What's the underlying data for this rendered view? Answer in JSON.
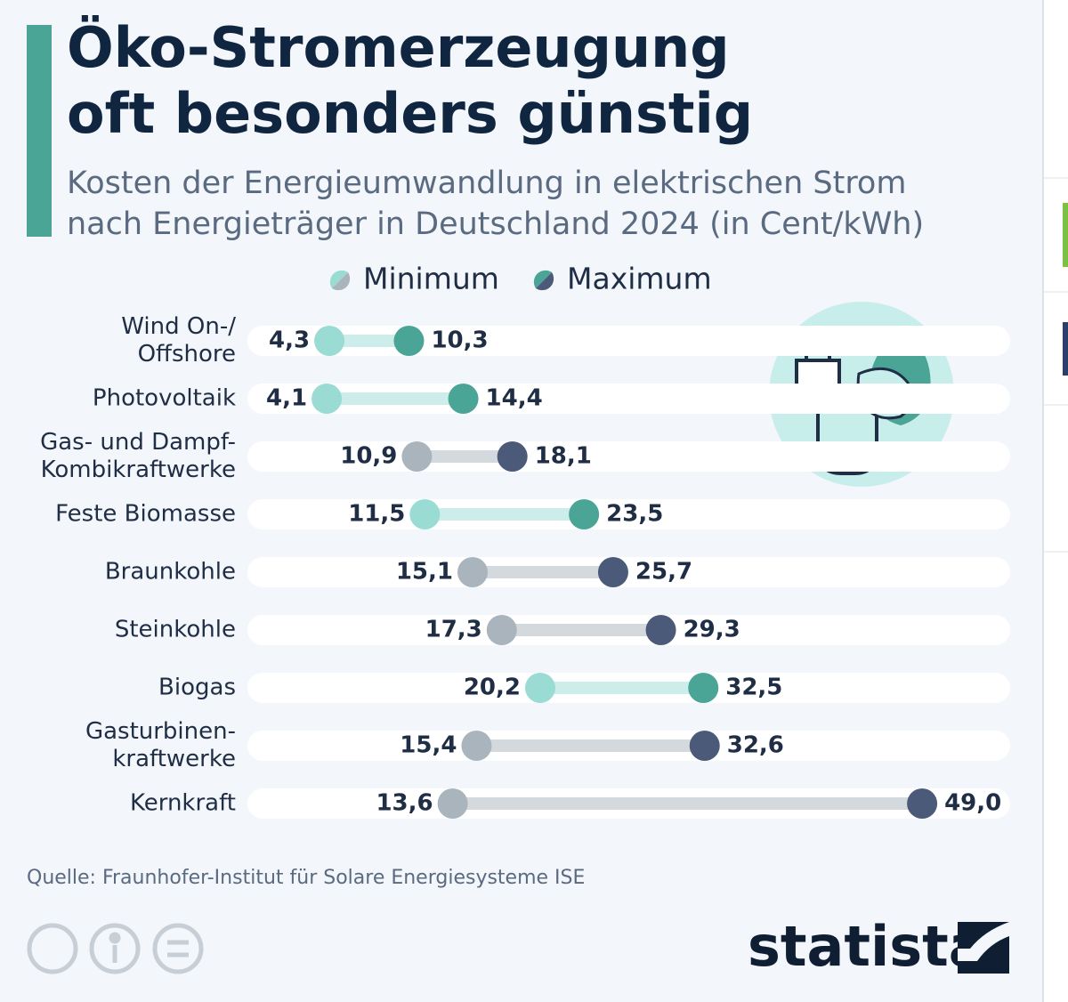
{
  "chart_data": {
    "type": "dumbbell",
    "title": [
      "Öko-Stromerzeugung",
      "oft besonders günstig"
    ],
    "subtitle": [
      "Kosten der Energieumwandlung in elektrischen Strom",
      "nach Energieträger in Deutschland 2024 (in Cent/kWh)"
    ],
    "categories": [
      [
        "Wind On-/",
        "Offshore"
      ],
      [
        "Photovoltaik"
      ],
      [
        "Gas- und Dampf-",
        "Kombikraftwerke"
      ],
      [
        "Feste Biomasse"
      ],
      [
        "Braunkohle"
      ],
      [
        "Steinkohle"
      ],
      [
        "Biogas"
      ],
      [
        "Gasturbinen-",
        "kraftwerke"
      ],
      [
        "Kernkraft"
      ]
    ],
    "series": [
      {
        "name": "Minimum",
        "colors": [
          "#9adcd3",
          "#9adcd3",
          "#aab4bd",
          "#9adcd3",
          "#aab4bd",
          "#aab4bd",
          "#9adcd3",
          "#aab4bd",
          "#aab4bd"
        ],
        "values": [
          4.3,
          4.1,
          10.9,
          11.5,
          15.1,
          17.3,
          20.2,
          15.4,
          13.6
        ],
        "value_labels": [
          "4,3",
          "4,1",
          "10,9",
          "11,5",
          "15,1",
          "17,3",
          "20,2",
          "15,4",
          "13,6"
        ]
      },
      {
        "name": "Maximum",
        "colors": [
          "#4aa596",
          "#4aa596",
          "#4b5a78",
          "#4aa596",
          "#4b5a78",
          "#4b5a78",
          "#4aa596",
          "#4b5a78",
          "#4b5a78"
        ],
        "values": [
          10.3,
          14.4,
          18.1,
          23.5,
          25.7,
          29.3,
          32.5,
          32.6,
          49.0
        ],
        "value_labels": [
          "10,3",
          "14,4",
          "18,1",
          "23,5",
          "25,7",
          "29,3",
          "32,5",
          "32,6",
          "49,0"
        ]
      }
    ],
    "source": "Quelle: Fraunhofer-Institut für Solare Energiesysteme ISE",
    "brand": "statista"
  }
}
